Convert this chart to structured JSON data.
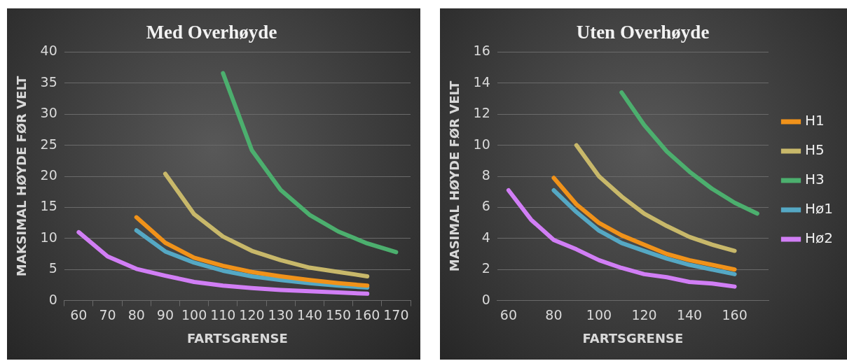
{
  "chart_data": [
    {
      "type": "line",
      "title": "Med Overhøyde",
      "xlabel": "FARTSGRENSE",
      "ylabel": "MAKSIMAL HØYDE FØR VELT",
      "categories": [
        "60",
        "70",
        "80",
        "90",
        "100",
        "110",
        "120",
        "130",
        "140",
        "150",
        "160",
        "170"
      ],
      "ylim": [
        0,
        40
      ],
      "yticks": [
        0,
        5,
        10,
        15,
        20,
        25,
        30,
        35,
        40
      ],
      "grid": "y",
      "legend": false,
      "series": [
        {
          "color": "#f0921a",
          "values": [
            null,
            null,
            13.4,
            9.3,
            6.9,
            5.6,
            4.6,
            3.9,
            3.3,
            2.8,
            2.4,
            null
          ]
        },
        {
          "color": "#c8b86a",
          "values": [
            null,
            null,
            null,
            20.4,
            13.9,
            10.3,
            8.0,
            6.5,
            5.3,
            4.6,
            3.9,
            null
          ]
        },
        {
          "color": "#4caf6e",
          "values": [
            null,
            null,
            null,
            null,
            null,
            36.6,
            24.2,
            17.8,
            13.8,
            11.1,
            9.2,
            7.8
          ]
        },
        {
          "color": "#55a8c4",
          "values": [
            null,
            null,
            11.3,
            7.9,
            6.1,
            4.8,
            3.9,
            3.3,
            2.8,
            2.4,
            2.1,
            null
          ]
        },
        {
          "color": "#d17ef5",
          "values": [
            11.0,
            7.1,
            5.1,
            4.0,
            3.0,
            2.4,
            2.0,
            1.7,
            1.5,
            1.3,
            1.1,
            null
          ]
        }
      ]
    },
    {
      "type": "line",
      "title": "Uten Overhøyde",
      "xlabel": "FARTSGRENSE",
      "ylabel": "MASIMAL HØYDE FØR VELT",
      "categories": [
        "60",
        null,
        "80",
        null,
        "100",
        null,
        "120",
        null,
        "140",
        null,
        "160",
        null
      ],
      "ylim": [
        0,
        16
      ],
      "yticks": [
        0,
        2,
        4,
        6,
        8,
        10,
        12,
        14,
        16
      ],
      "grid": "y",
      "legend": "right",
      "series": [
        {
          "name": "H1",
          "color": "#f0921a",
          "values": [
            null,
            null,
            7.9,
            6.2,
            5.0,
            4.2,
            3.6,
            3.0,
            2.6,
            2.3,
            2.0,
            null
          ]
        },
        {
          "name": "H5",
          "color": "#c8b86a",
          "values": [
            null,
            null,
            null,
            10.0,
            8.0,
            6.7,
            5.6,
            4.8,
            4.1,
            3.6,
            3.2,
            null
          ]
        },
        {
          "name": "H3",
          "color": "#4caf6e",
          "values": [
            null,
            null,
            null,
            null,
            null,
            13.4,
            11.3,
            9.6,
            8.3,
            7.2,
            6.3,
            5.6
          ]
        },
        {
          "name": "Hø1",
          "color": "#55a8c4",
          "values": [
            null,
            null,
            7.1,
            5.7,
            4.5,
            3.7,
            3.2,
            2.7,
            2.3,
            2.0,
            1.7,
            null
          ]
        },
        {
          "name": "Hø2",
          "color": "#d17ef5",
          "values": [
            7.1,
            5.2,
            3.9,
            3.3,
            2.6,
            2.1,
            1.7,
            1.5,
            1.2,
            1.1,
            0.9,
            null
          ]
        }
      ]
    }
  ]
}
